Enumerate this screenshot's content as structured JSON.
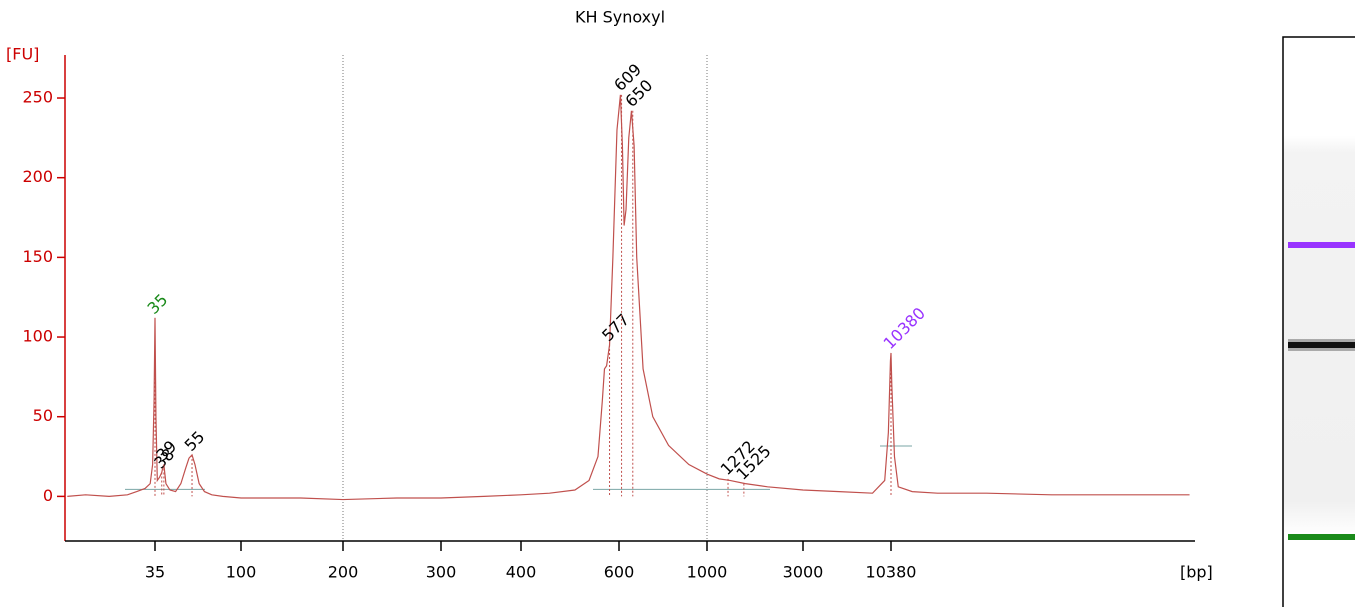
{
  "chart_data": {
    "type": "line",
    "title": "KH Synoxyl",
    "ylabel": "[FU]",
    "xlabel": "[bp]",
    "color": "#c0504d",
    "axis_color": "#cc0000",
    "x": [
      12,
      15,
      20,
      25,
      28,
      31,
      33,
      34,
      34.6,
      35,
      35.4,
      36,
      37,
      38,
      38.5,
      39,
      40,
      42,
      45,
      48,
      51,
      53,
      55,
      57,
      60,
      64,
      70,
      80,
      100,
      150,
      200,
      250,
      300,
      350,
      400,
      450,
      500,
      530,
      550,
      560,
      565,
      570,
      577,
      585,
      595,
      605,
      612,
      618,
      625,
      635,
      645,
      655,
      665,
      690,
      730,
      800,
      900,
      1000,
      1150,
      1300,
      1550,
      2000,
      3000,
      5000,
      8000,
      9500,
      10000,
      10300,
      10380,
      10500,
      10900,
      11500,
      14000,
      20000,
      40000,
      100000,
      300000,
      700000
    ],
    "values": [
      0,
      1,
      0,
      1,
      3,
      5,
      8,
      20,
      60,
      112,
      50,
      10,
      12,
      15,
      18,
      20,
      8,
      4,
      3,
      8,
      18,
      24,
      26,
      20,
      8,
      3,
      1,
      0,
      -1,
      -1,
      -2,
      -1,
      -1,
      0,
      1,
      2,
      4,
      10,
      25,
      60,
      80,
      82,
      95,
      150,
      230,
      252,
      220,
      170,
      180,
      225,
      242,
      220,
      150,
      80,
      50,
      32,
      20,
      14,
      11,
      10,
      8,
      6,
      4,
      3,
      2,
      10,
      40,
      85,
      90,
      70,
      25,
      6,
      3,
      2,
      2,
      1,
      1,
      1
    ],
    "peaks": [
      35,
      38,
      39,
      55,
      577,
      609,
      650,
      1272,
      1525,
      10380
    ],
    "peak_heights": [
      112,
      15,
      20,
      26,
      95,
      252,
      242,
      11,
      8,
      90
    ],
    "peak_colors": [
      "#1a8a1a",
      "#000000",
      "#000000",
      "#000000",
      "#000000",
      "#000000",
      "#000000",
      "#000000",
      "#000000",
      "#9933ff"
    ],
    "ylim": [
      -28,
      277
    ],
    "yticks": [
      0,
      50,
      100,
      150,
      200,
      250
    ],
    "xticks": [
      35,
      100,
      200,
      300,
      400,
      600,
      1000,
      3000,
      10380
    ],
    "xgrid": [
      200,
      1000
    ]
  }
}
